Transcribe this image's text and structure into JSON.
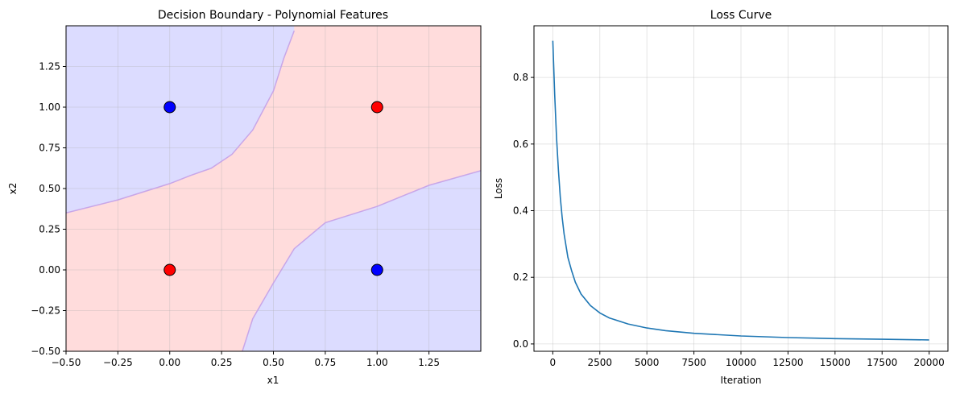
{
  "chart_data": [
    {
      "type": "scatter",
      "title": "Decision Boundary - Polynomial Features",
      "xlabel": "x1",
      "ylabel": "x2",
      "xlim": [
        -0.5,
        1.5
      ],
      "ylim": [
        -0.5,
        1.5
      ],
      "xticks": [
        -0.5,
        -0.25,
        0.0,
        0.25,
        0.5,
        0.75,
        1.0,
        1.25
      ],
      "xtick_labels": [
        "−0.50",
        "−0.25",
        "0.00",
        "0.25",
        "0.50",
        "0.75",
        "1.00",
        "1.25"
      ],
      "yticks": [
        -0.5,
        -0.25,
        0.0,
        0.25,
        0.5,
        0.75,
        1.0,
        1.25
      ],
      "ytick_labels": [
        "−0.50",
        "−0.25",
        "0.00",
        "0.25",
        "0.50",
        "0.75",
        "1.00",
        "1.25"
      ],
      "grid": true,
      "colors": {
        "class0_region": "#dcdcff",
        "class1_region": "#ffdcdc",
        "boundary": "#c8a6e8",
        "class0_point": "#0000ff",
        "class1_point": "#ff0000"
      },
      "points": [
        {
          "x": 0,
          "y": 0,
          "class": 1
        },
        {
          "x": 0,
          "y": 1,
          "class": 0
        },
        {
          "x": 1,
          "y": 0,
          "class": 0
        },
        {
          "x": 1,
          "y": 1,
          "class": 1
        }
      ],
      "boundary_upper": [
        {
          "x": -0.5,
          "y": 0.35
        },
        {
          "x": -0.25,
          "y": 0.43
        },
        {
          "x": 0.0,
          "y": 0.53
        },
        {
          "x": 0.1,
          "y": 0.58
        },
        {
          "x": 0.2,
          "y": 0.625
        },
        {
          "x": 0.3,
          "y": 0.71
        },
        {
          "x": 0.4,
          "y": 0.86
        },
        {
          "x": 0.5,
          "y": 1.1
        },
        {
          "x": 0.55,
          "y": 1.3
        },
        {
          "x": 0.6,
          "y": 1.47
        }
      ],
      "boundary_lower": [
        {
          "x": 0.35,
          "y": -0.5
        },
        {
          "x": 0.4,
          "y": -0.3
        },
        {
          "x": 0.5,
          "y": -0.08
        },
        {
          "x": 0.6,
          "y": 0.13
        },
        {
          "x": 0.75,
          "y": 0.29
        },
        {
          "x": 1.0,
          "y": 0.39
        },
        {
          "x": 1.25,
          "y": 0.52
        },
        {
          "x": 1.5,
          "y": 0.61
        }
      ]
    },
    {
      "type": "line",
      "title": "Loss Curve",
      "xlabel": "Iteration",
      "ylabel": "Loss",
      "xlim": [
        -1000,
        21000
      ],
      "ylim": [
        -0.022,
        0.955
      ],
      "xticks": [
        0,
        2500,
        5000,
        7500,
        10000,
        12500,
        15000,
        17500,
        20000
      ],
      "xtick_labels": [
        "0",
        "2500",
        "5000",
        "7500",
        "10000",
        "12500",
        "15000",
        "17500",
        "20000"
      ],
      "yticks": [
        0.0,
        0.2,
        0.4,
        0.6,
        0.8
      ],
      "ytick_labels": [
        "0.0",
        "0.2",
        "0.4",
        "0.6",
        "0.8"
      ],
      "grid": true,
      "color": "#1f77b4",
      "x": [
        0,
        100,
        200,
        300,
        400,
        500,
        600,
        800,
        1000,
        1200,
        1500,
        2000,
        2500,
        3000,
        4000,
        5000,
        6000,
        7500,
        10000,
        12500,
        15000,
        17500,
        20000
      ],
      "y": [
        0.91,
        0.75,
        0.62,
        0.52,
        0.44,
        0.38,
        0.33,
        0.26,
        0.22,
        0.185,
        0.15,
        0.115,
        0.093,
        0.078,
        0.06,
        0.048,
        0.04,
        0.032,
        0.024,
        0.019,
        0.016,
        0.014,
        0.012
      ]
    }
  ]
}
